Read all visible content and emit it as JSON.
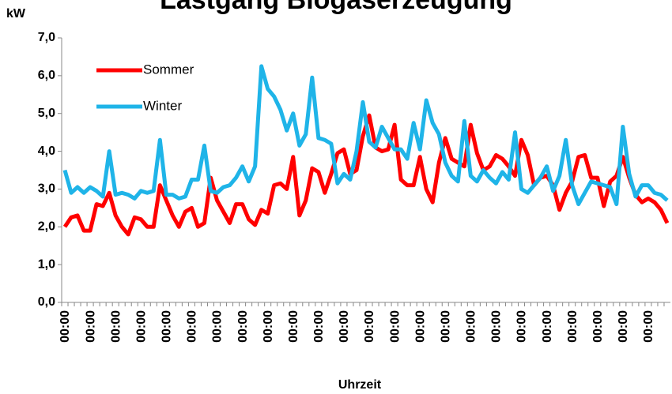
{
  "chart_data": {
    "type": "line",
    "title": "Lastgang Biogaserzeugung",
    "y_label": "kW",
    "x_label": "Uhrzeit",
    "categories": [
      "00:00",
      null,
      null,
      null,
      "00:00",
      null,
      null,
      null,
      "00:00",
      null,
      null,
      null,
      "00:00",
      null,
      null,
      null,
      "00:00",
      null,
      null,
      null,
      "00:00",
      null,
      null,
      null,
      "00:00",
      null,
      null,
      null,
      "00:00",
      null,
      null,
      null,
      "00:00",
      null,
      null,
      null,
      "00:00",
      null,
      null,
      null,
      "00:00",
      null,
      null,
      null,
      "00:00",
      null,
      null,
      null,
      "00:00",
      null,
      null,
      null,
      "00:00",
      null,
      null,
      null,
      "00:00",
      null,
      null,
      null,
      "00:00",
      null,
      null,
      null,
      "00:00",
      null,
      null,
      null,
      "00:00",
      null,
      null,
      null,
      "00:00",
      null,
      null,
      null,
      "00:00",
      null,
      null,
      null,
      "00:00",
      null,
      null,
      null,
      "00:00",
      null,
      null,
      null,
      "00:00",
      null,
      null,
      null,
      "00:00",
      null,
      null,
      null
    ],
    "series": [
      {
        "name": "Sommer",
        "color": "#ff0000",
        "values": [
          2.0,
          2.25,
          2.3,
          1.9,
          1.9,
          2.6,
          2.55,
          2.9,
          2.3,
          2.0,
          1.8,
          2.25,
          2.2,
          2.0,
          2.0,
          3.1,
          2.7,
          2.3,
          2.0,
          2.4,
          2.5,
          2.0,
          2.1,
          3.3,
          2.7,
          2.4,
          2.1,
          2.6,
          2.6,
          2.2,
          2.05,
          2.45,
          2.35,
          3.1,
          3.15,
          3.0,
          3.85,
          2.3,
          2.7,
          3.55,
          3.45,
          2.9,
          3.4,
          3.95,
          4.05,
          3.4,
          3.5,
          4.4,
          4.95,
          4.1,
          4.0,
          4.05,
          4.7,
          3.25,
          3.1,
          3.1,
          3.85,
          3.0,
          2.65,
          3.7,
          4.35,
          3.8,
          3.7,
          3.6,
          4.7,
          3.95,
          3.5,
          3.6,
          3.9,
          3.8,
          3.6,
          3.35,
          4.3,
          3.9,
          3.1,
          3.3,
          3.35,
          3.1,
          2.45,
          2.9,
          3.2,
          3.85,
          3.9,
          3.3,
          3.3,
          2.55,
          3.2,
          3.35,
          3.85,
          3.3,
          2.85,
          2.65,
          2.75,
          2.65,
          2.45,
          2.1
        ]
      },
      {
        "name": "Winter",
        "color": "#1fb4e8",
        "values": [
          3.5,
          2.9,
          3.05,
          2.9,
          3.05,
          2.95,
          2.8,
          4.0,
          2.85,
          2.9,
          2.85,
          2.75,
          2.95,
          2.9,
          2.95,
          4.3,
          2.85,
          2.85,
          2.75,
          2.8,
          3.25,
          3.25,
          4.15,
          2.95,
          2.9,
          3.05,
          3.1,
          3.3,
          3.6,
          3.2,
          3.6,
          6.25,
          5.65,
          5.45,
          5.1,
          4.55,
          5.0,
          4.15,
          4.45,
          5.95,
          4.35,
          4.3,
          4.2,
          3.15,
          3.4,
          3.25,
          4.0,
          5.3,
          4.25,
          4.1,
          4.65,
          4.35,
          4.05,
          4.05,
          3.8,
          4.75,
          4.05,
          5.35,
          4.75,
          4.45,
          3.7,
          3.35,
          3.2,
          4.8,
          3.35,
          3.2,
          3.5,
          3.3,
          3.15,
          3.45,
          3.25,
          4.5,
          3.0,
          2.9,
          3.1,
          3.3,
          3.6,
          2.95,
          3.35,
          4.3,
          3.1,
          2.6,
          2.9,
          3.2,
          3.15,
          3.1,
          3.05,
          2.6,
          4.65,
          3.4,
          2.8,
          3.1,
          3.1,
          2.9,
          2.85,
          2.7
        ]
      }
    ],
    "ylim": [
      0,
      7
    ],
    "yticks": [
      {
        "value": 0,
        "label": "0,0"
      },
      {
        "value": 1,
        "label": "1,0"
      },
      {
        "value": 2,
        "label": "2,0"
      },
      {
        "value": 3,
        "label": "3,0"
      },
      {
        "value": 4,
        "label": "4,0"
      },
      {
        "value": 5,
        "label": "5,0"
      },
      {
        "value": 6,
        "label": "6,0"
      },
      {
        "value": 7,
        "label": "7,0"
      }
    ],
    "grid": false,
    "legend": "upper left"
  }
}
